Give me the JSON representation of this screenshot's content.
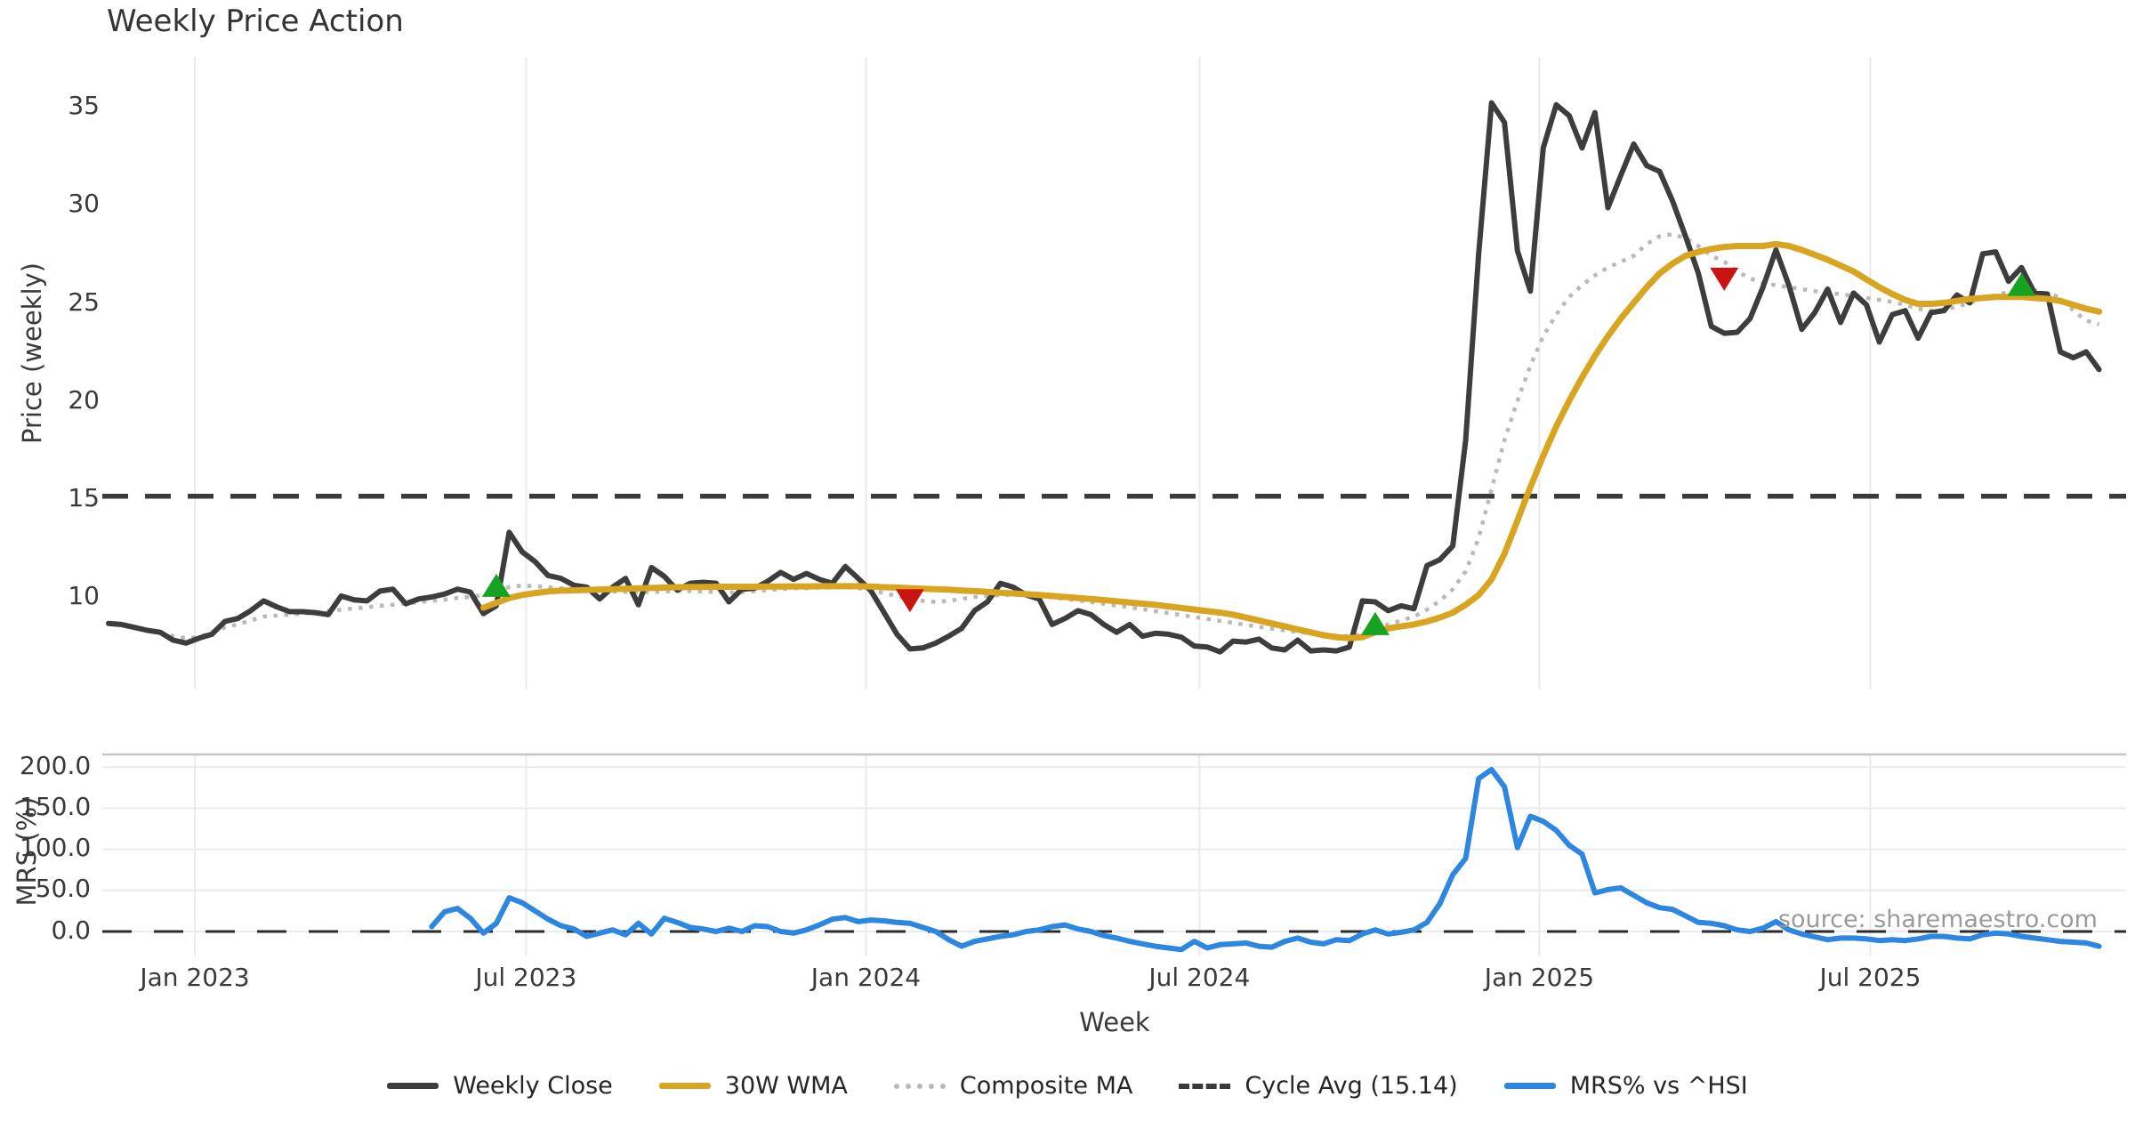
{
  "title": "Weekly Price Action",
  "source_note": "source: sharemaestro.com",
  "colors": {
    "weekly_close": "#3d3d3d",
    "wma_30w": "#d9a521",
    "composite_ma": "#b9b9b9",
    "cycle_avg": "#3a3a3a",
    "mrs": "#2d87e0",
    "buy_marker": "#18a221",
    "sell_marker": "#c91414",
    "grid": "#e9ebf1",
    "panel_spine": "#c6c6c6"
  },
  "legend": {
    "items": [
      {
        "label": "Weekly Close",
        "style": "solid",
        "color": "#3d3d3d"
      },
      {
        "label": "30W WMA",
        "style": "solid",
        "color": "#d9a521"
      },
      {
        "label": "Composite MA",
        "style": "dotted",
        "color": "#b9b9b9"
      },
      {
        "label": "Cycle Avg (15.14)",
        "style": "dashed",
        "color": "#3a3a3a"
      },
      {
        "label": "MRS% vs ^HSI",
        "style": "solid",
        "color": "#2d87e0"
      }
    ]
  },
  "chart_data": {
    "type": "line",
    "x": {
      "label": "Week",
      "unit": "weekly bars, Nov 2022 - Nov 2025",
      "weeks_total": 155,
      "ticks": [
        {
          "label": "Jan 2023",
          "week": 6.68
        },
        {
          "label": "Jul 2023",
          "week": 32.3
        },
        {
          "label": "Jan 2024",
          "week": 58.6
        },
        {
          "label": "Jul 2024",
          "week": 84.4
        },
        {
          "label": "Jan 2025",
          "week": 110.7
        },
        {
          "label": "Jul 2025",
          "week": 136.3
        }
      ]
    },
    "panels": [
      {
        "name": "price",
        "ylabel": "Price (weekly)",
        "ylim": [
          5.2,
          37.5
        ],
        "yticks": [
          35,
          30,
          25,
          20,
          15,
          10
        ],
        "ytick_labels": [
          "35",
          "30",
          "25",
          "20",
          "15",
          "10"
        ],
        "cycle_avg": 15.14,
        "grid": "vertical-only",
        "series": [
          {
            "name": "Weekly Close",
            "style": "solid",
            "color": "#3d3d3d",
            "values": [
              8.65,
              8.6,
              8.45,
              8.3,
              8.2,
              7.8,
              7.65,
              7.9,
              8.1,
              8.75,
              8.9,
              9.3,
              9.8,
              9.5,
              9.25,
              9.25,
              9.2,
              9.1,
              10.05,
              9.85,
              9.8,
              10.3,
              10.4,
              9.65,
              9.9,
              10.0,
              10.15,
              10.4,
              10.25,
              9.15,
              9.55,
              13.3,
              12.3,
              11.8,
              11.1,
              10.95,
              10.6,
              10.5,
              9.9,
              10.5,
              10.95,
              9.6,
              11.5,
              11.05,
              10.35,
              10.7,
              10.75,
              10.7,
              9.75,
              10.4,
              10.45,
              10.8,
              11.25,
              10.9,
              11.2,
              10.9,
              10.7,
              11.55,
              10.95,
              10.3,
              9.2,
              8.1,
              7.35,
              7.4,
              7.65,
              8.0,
              8.4,
              9.3,
              9.75,
              10.7,
              10.5,
              10.1,
              9.9,
              8.6,
              8.9,
              9.3,
              9.1,
              8.6,
              8.2,
              8.6,
              8.0,
              8.15,
              8.1,
              7.95,
              7.5,
              7.45,
              7.2,
              7.75,
              7.7,
              7.85,
              7.4,
              7.3,
              7.8,
              7.25,
              7.3,
              7.25,
              7.45,
              9.8,
              9.75,
              9.3,
              9.55,
              9.4,
              11.6,
              11.9,
              12.6,
              18.0,
              27.5,
              35.2,
              34.2,
              27.65,
              25.6,
              32.9,
              35.1,
              34.55,
              32.9,
              34.7,
              29.85,
              31.5,
              33.1,
              32.0,
              31.7,
              30.2,
              28.4,
              26.5,
              23.8,
              23.45,
              23.5,
              24.2,
              25.8,
              27.7,
              25.9,
              23.65,
              24.5,
              25.7,
              24.0,
              25.5,
              24.9,
              23.0,
              24.4,
              24.6,
              23.2,
              24.5,
              24.6,
              25.4,
              25.0,
              27.5,
              27.6,
              26.1,
              26.8,
              25.5,
              25.45,
              22.5,
              22.2,
              22.5,
              21.6
            ]
          },
          {
            "name": "30W WMA",
            "style": "solid",
            "color": "#d9a521",
            "values": [
              null,
              null,
              null,
              null,
              null,
              null,
              null,
              null,
              null,
              null,
              null,
              null,
              null,
              null,
              null,
              null,
              null,
              null,
              null,
              null,
              null,
              null,
              null,
              null,
              null,
              null,
              null,
              null,
              null,
              9.45,
              9.7,
              9.95,
              10.1,
              10.2,
              10.28,
              10.32,
              10.34,
              10.36,
              10.38,
              10.4,
              10.42,
              10.44,
              10.46,
              10.48,
              10.5,
              10.51,
              10.51,
              10.52,
              10.52,
              10.52,
              10.52,
              10.53,
              10.53,
              10.54,
              10.54,
              10.55,
              10.55,
              10.55,
              10.55,
              10.53,
              10.5,
              10.48,
              10.45,
              10.42,
              10.4,
              10.37,
              10.33,
              10.3,
              10.26,
              10.22,
              10.18,
              10.14,
              10.1,
              10.05,
              10.0,
              9.95,
              9.9,
              9.84,
              9.78,
              9.72,
              9.66,
              9.6,
              9.52,
              9.44,
              9.36,
              9.28,
              9.2,
              9.1,
              8.95,
              8.8,
              8.65,
              8.5,
              8.35,
              8.2,
              8.05,
              7.95,
              7.9,
              7.95,
              8.2,
              8.4,
              8.5,
              8.6,
              8.75,
              8.95,
              9.2,
              9.6,
              10.1,
              10.9,
              12.2,
              13.9,
              15.6,
              17.2,
              18.7,
              20.0,
              21.2,
              22.3,
              23.3,
              24.2,
              25.0,
              25.8,
              26.5,
              27.0,
              27.4,
              27.6,
              27.75,
              27.85,
              27.9,
              27.9,
              27.9,
              28.0,
              27.9,
              27.7,
              27.45,
              27.2,
              26.9,
              26.6,
              26.2,
              25.8,
              25.45,
              25.15,
              24.95,
              24.95,
              25.0,
              25.1,
              25.2,
              25.25,
              25.3,
              25.3,
              25.3,
              25.25,
              25.2,
              25.1,
              24.9,
              24.7,
              24.55
            ]
          },
          {
            "name": "Composite MA",
            "style": "dotted",
            "color": "#b9b9b9",
            "values": [
              null,
              null,
              null,
              null,
              8.2,
              8.0,
              7.9,
              7.95,
              8.2,
              8.45,
              8.6,
              8.8,
              9.0,
              9.05,
              9.1,
              9.15,
              9.2,
              9.28,
              9.35,
              9.42,
              9.48,
              9.55,
              9.6,
              9.68,
              9.73,
              9.8,
              9.87,
              9.95,
              10.0,
              10.1,
              10.3,
              10.5,
              10.58,
              10.55,
              10.5,
              10.45,
              10.4,
              10.35,
              10.3,
              10.28,
              10.26,
              10.25,
              10.25,
              10.28,
              10.3,
              10.3,
              10.28,
              10.25,
              10.22,
              10.25,
              10.3,
              10.35,
              10.4,
              10.45,
              10.45,
              10.48,
              10.48,
              10.5,
              10.45,
              10.35,
              10.2,
              10.05,
              9.9,
              9.8,
              9.75,
              9.8,
              9.9,
              10.0,
              10.05,
              10.1,
              10.12,
              10.1,
              10.05,
              9.98,
              9.9,
              9.82,
              9.74,
              9.65,
              9.56,
              9.47,
              9.38,
              9.28,
              9.18,
              9.08,
              8.98,
              8.88,
              8.78,
              8.68,
              8.58,
              8.48,
              8.38,
              8.3,
              8.22,
              8.14,
              8.08,
              8.03,
              8.0,
              8.1,
              8.35,
              8.6,
              8.8,
              9.0,
              9.35,
              9.8,
              10.4,
              11.3,
              13.0,
              15.5,
              18.0,
              20.0,
              21.8,
              23.3,
              24.4,
              25.3,
              25.9,
              26.4,
              26.8,
              27.1,
              27.4,
              28.0,
              28.4,
              28.5,
              28.3,
              27.9,
              27.4,
              27.1,
              26.6,
              26.25,
              26.0,
              25.9,
              25.8,
              25.7,
              25.6,
              25.5,
              25.45,
              25.35,
              25.25,
              25.15,
              25.05,
              24.9,
              24.7,
              24.6,
              24.65,
              24.8,
              25.0,
              25.2,
              25.4,
              25.55,
              25.7,
              25.65,
              25.45,
              25.3,
              24.6,
              24.1,
              23.9
            ]
          }
        ],
        "markers": [
          {
            "shape": "triangle-up",
            "signal": "buy",
            "color": "#18a221",
            "week": 30,
            "value": 10.55
          },
          {
            "shape": "triangle-down",
            "signal": "sell",
            "color": "#c91414",
            "week": 62,
            "value": 9.85
          },
          {
            "shape": "triangle-up",
            "signal": "buy",
            "color": "#18a221",
            "week": 98,
            "value": 8.6
          },
          {
            "shape": "triangle-down",
            "signal": "sell",
            "color": "#c91414",
            "week": 125,
            "value": 26.25
          },
          {
            "shape": "triangle-up",
            "signal": "buy",
            "color": "#18a221",
            "week": 148,
            "value": 25.9
          }
        ]
      },
      {
        "name": "mrs",
        "ylabel": "MRS (%)",
        "ylim": [
          -30,
          215
        ],
        "yticks": [
          200,
          150,
          100,
          50,
          0
        ],
        "ytick_labels": [
          "200.0",
          "150.0",
          "100.0",
          "50.0",
          "0.0"
        ],
        "zero_line": 0,
        "series": [
          {
            "name": "MRS% vs ^HSI",
            "style": "solid",
            "color": "#2d87e0",
            "values": [
              null,
              null,
              null,
              null,
              null,
              null,
              null,
              null,
              null,
              null,
              null,
              null,
              null,
              null,
              null,
              null,
              null,
              null,
              null,
              null,
              null,
              null,
              null,
              null,
              null,
              6,
              24,
              28,
              16,
              -2,
              10,
              41,
              35,
              25,
              15,
              7,
              3,
              -6,
              -2,
              2,
              -4,
              10,
              -3,
              16,
              11,
              5,
              3,
              0,
              4,
              0,
              7,
              6,
              0,
              -2,
              2,
              8,
              15,
              17,
              12,
              14,
              13,
              11,
              10,
              5,
              0,
              -10,
              -18,
              -12,
              -9,
              -6,
              -4,
              0,
              2,
              6,
              8,
              3,
              0,
              -5,
              -8,
              -12,
              -15,
              -18,
              -20,
              -22,
              -12,
              -20,
              -16,
              -15,
              -14,
              -18,
              -19,
              -12,
              -8,
              -13,
              -15,
              -10,
              -11,
              -3,
              2,
              -3,
              -1,
              2,
              11,
              34,
              69,
              89,
              186,
              197,
              176,
              102,
              140,
              134,
              123,
              105,
              94,
              47,
              51,
              53,
              44,
              35,
              29,
              27,
              19,
              11,
              10,
              7,
              2,
              0,
              4,
              12,
              2,
              -3,
              -6.5,
              -10,
              -8,
              -8,
              -9,
              -11,
              -10,
              -11,
              -9,
              -6,
              -6,
              -8,
              -9,
              -4,
              -2,
              -3,
              -6,
              -8,
              -10,
              -12,
              -13,
              -14,
              -18
            ]
          }
        ]
      }
    ]
  }
}
